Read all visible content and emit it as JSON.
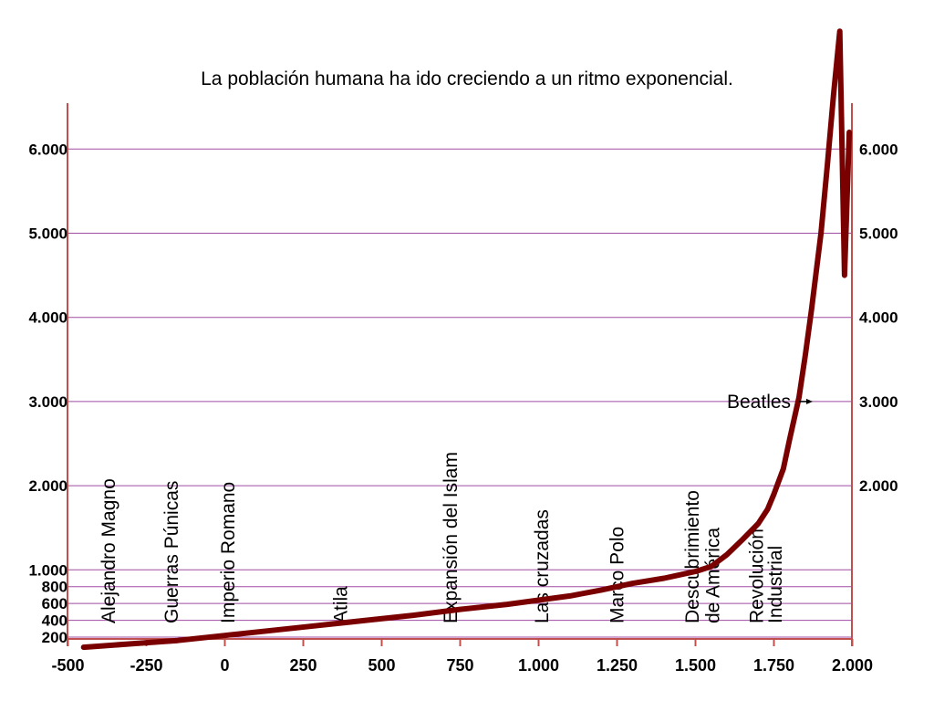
{
  "chart_data": {
    "type": "line",
    "title": "La población humana ha ido creciendo a un ritmo exponencial.",
    "xlabel": "",
    "ylabel": "",
    "xlim": [
      -500,
      2000
    ],
    "ylim": [
      0,
      6500
    ],
    "grid": "horizontal",
    "x_ticks": [
      -500,
      -250,
      0,
      250,
      500,
      750,
      1000,
      1250,
      1500,
      1750,
      2000
    ],
    "x_tick_labels": [
      "-500",
      "-250",
      "0",
      "250",
      "500",
      "750",
      "1.000",
      "1.250",
      "1.500",
      "1.750",
      "2.000"
    ],
    "y_ticks": [
      200,
      400,
      600,
      800,
      1000,
      2000,
      3000,
      4000,
      5000,
      6000
    ],
    "y_tick_labels": [
      "200",
      "400",
      "600",
      "800",
      "1.000",
      "2.000",
      "3.000",
      "4.000",
      "5.000",
      "6.000"
    ],
    "y_ticks_right": [
      2000,
      3000,
      4000,
      5000,
      6000
    ],
    "y_tick_labels_right": [
      "2.000",
      "3.000",
      "4.000",
      "5.000",
      "6.000"
    ],
    "series": [
      {
        "name": "",
        "x": [
          -450,
          -300,
          -150,
          0,
          150,
          300,
          450,
          600,
          750,
          900,
          1000,
          1100,
          1200,
          1300,
          1400,
          1500,
          1550,
          1600,
          1650,
          1700,
          1730,
          1750,
          1780,
          1800,
          1830,
          1850,
          1870,
          1900,
          1920,
          1940,
          1960,
          1975,
          1990
        ],
        "y": [
          80,
          120,
          160,
          220,
          280,
          340,
          400,
          460,
          530,
          590,
          640,
          690,
          760,
          840,
          900,
          980,
          1040,
          1180,
          1360,
          1550,
          1720,
          1900,
          2200,
          2550,
          3050,
          3550,
          4100,
          5000,
          5800,
          6650,
          7400,
          4500,
          6200
        ]
      }
    ],
    "events": [
      {
        "label": "Alejandro Magno",
        "x": -350
      },
      {
        "label": "Guerras Púnicas",
        "x": -150
      },
      {
        "label": "Imperio Romano",
        "x": 30
      },
      {
        "label": "Atila",
        "x": 390
      },
      {
        "label": "Expansión del Islam",
        "x": 740
      },
      {
        "label": "Las cruzadas",
        "x": 1030
      },
      {
        "label": "Marco Polo",
        "x": 1270
      },
      {
        "label": "Descubrimiento",
        "x": 1510
      },
      {
        "label": "de América",
        "x": 1575
      },
      {
        "label": "Revolución",
        "x": 1715
      },
      {
        "label": "Industrial",
        "x": 1775
      }
    ],
    "annotation": {
      "label": "Beatles",
      "x": 1960,
      "y": 3000
    },
    "colors": {
      "line": "#7a0000",
      "frame": "#c0504d",
      "grid": "#a04ca4"
    }
  }
}
